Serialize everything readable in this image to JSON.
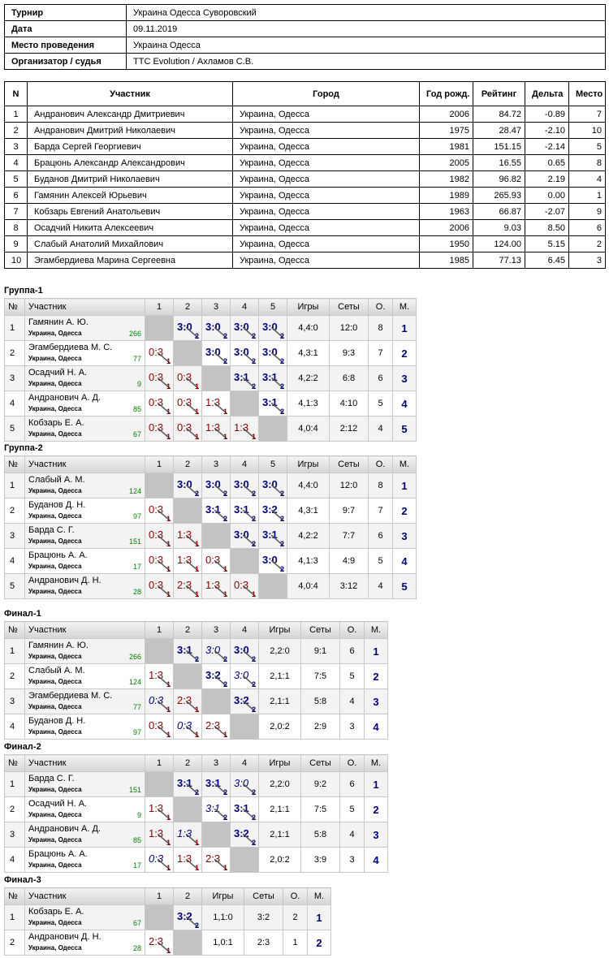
{
  "info": {
    "rows": [
      [
        "Турнир",
        "Украина Одесса Суворовский"
      ],
      [
        "Дата",
        "09.11.2019"
      ],
      [
        "Место проведения",
        "Украина Одесса"
      ],
      [
        "Организатор / судья",
        "TTC Evolution / Ахламов С.В."
      ]
    ]
  },
  "participants": {
    "header": [
      "N",
      "Участник",
      "Город",
      "Год рожд.",
      "Рейтинг",
      "Дельта",
      "Место"
    ],
    "rows": [
      [
        "1",
        "Андранович Александр Дмитриевич",
        "Украина, Одесса",
        "2006",
        "84.72",
        "-0.89",
        "7"
      ],
      [
        "2",
        "Андранович Дмитрий Николаевич",
        "Украина, Одесса",
        "1975",
        "28.47",
        "-2.10",
        "10"
      ],
      [
        "3",
        "Барда Сергей Георгиевич",
        "Украина, Одесса",
        "1981",
        "151.15",
        "-2.14",
        "5"
      ],
      [
        "4",
        "Брацюнь Александр Александрович",
        "Украина, Одесса",
        "2005",
        "16.55",
        "0.65",
        "8"
      ],
      [
        "5",
        "Буданов Дмитрий Николаевич",
        "Украина, Одесса",
        "1982",
        "96.82",
        "2.19",
        "4"
      ],
      [
        "6",
        "Гамянин Алексей Юрьевич",
        "Украина, Одесса",
        "1989",
        "265.93",
        "0.00",
        "1"
      ],
      [
        "7",
        "Кобзарь Евгений Анатольевич",
        "Украина, Одесса",
        "1963",
        "66.87",
        "-2.07",
        "9"
      ],
      [
        "8",
        "Осадчий Никита Алексеевич",
        "Украина, Одесса",
        "2006",
        "9.03",
        "8.50",
        "6"
      ],
      [
        "9",
        "Слабый Анатолий Михайлович",
        "Украина, Одесса",
        "1950",
        "124.00",
        "5.15",
        "2"
      ],
      [
        "10",
        "Эгамбердиева Марина Сергеевна",
        "Украина, Одесса",
        "1985",
        "77.13",
        "6.45",
        "3"
      ]
    ]
  },
  "groups": [
    {
      "title": "Группа-1",
      "header": [
        "№",
        "Участник",
        "1",
        "2",
        "3",
        "4",
        "5",
        "Игры",
        "Сеты",
        "О.",
        "М."
      ],
      "rows": [
        {
          "n": 1,
          "name": "Гамянин А. Ю.",
          "city": "Украина, Одесса",
          "rating": 266,
          "cells": [
            null,
            {
              "score": "3:0",
              "pts": 2
            },
            {
              "score": "3:0",
              "pts": 2
            },
            {
              "score": "3:0",
              "pts": 2
            },
            {
              "score": "3:0",
              "pts": 2
            }
          ],
          "games": "4,4:0",
          "sets": "12:0",
          "points": 8,
          "place": 1
        },
        {
          "n": 2,
          "name": "Эгамбердиева М. С.",
          "city": "Украина, Одесса",
          "rating": 77,
          "cells": [
            {
              "score": "0:3",
              "pts": 1
            },
            null,
            {
              "score": "3:0",
              "pts": 2
            },
            {
              "score": "3:0",
              "pts": 2
            },
            {
              "score": "3:0",
              "pts": 2
            }
          ],
          "games": "4,3:1",
          "sets": "9:3",
          "points": 7,
          "place": 2
        },
        {
          "n": 3,
          "name": "Осадчий Н. А.",
          "city": "Украина, Одесса",
          "rating": 9,
          "cells": [
            {
              "score": "0:3",
              "pts": 1
            },
            {
              "score": "0:3",
              "pts": 1
            },
            null,
            {
              "score": "3:1",
              "pts": 2
            },
            {
              "score": "3:1",
              "pts": 2
            }
          ],
          "games": "4,2:2",
          "sets": "6:8",
          "points": 6,
          "place": 3
        },
        {
          "n": 4,
          "name": "Андранович А. Д.",
          "city": "Украина, Одесса",
          "rating": 85,
          "cells": [
            {
              "score": "0:3",
              "pts": 1
            },
            {
              "score": "0:3",
              "pts": 1
            },
            {
              "score": "1:3",
              "pts": 1
            },
            null,
            {
              "score": "3:1",
              "pts": 2
            }
          ],
          "games": "4,1:3",
          "sets": "4:10",
          "points": 5,
          "place": 4
        },
        {
          "n": 5,
          "name": "Кобзарь Е. А.",
          "city": "Украина, Одесса",
          "rating": 67,
          "cells": [
            {
              "score": "0:3",
              "pts": 1
            },
            {
              "score": "0:3",
              "pts": 1
            },
            {
              "score": "1:3",
              "pts": 1
            },
            {
              "score": "1:3",
              "pts": 1
            },
            null
          ],
          "games": "4,0:4",
          "sets": "2:12",
          "points": 4,
          "place": 5
        }
      ]
    },
    {
      "title": "Группа-2",
      "header": [
        "№",
        "Участник",
        "1",
        "2",
        "3",
        "4",
        "5",
        "Игры",
        "Сеты",
        "О.",
        "М."
      ],
      "rows": [
        {
          "n": 1,
          "name": "Слабый А. М.",
          "city": "Украина, Одесса",
          "rating": 124,
          "cells": [
            null,
            {
              "score": "3:0",
              "pts": 2
            },
            {
              "score": "3:0",
              "pts": 2
            },
            {
              "score": "3:0",
              "pts": 2
            },
            {
              "score": "3:0",
              "pts": 2
            }
          ],
          "games": "4,4:0",
          "sets": "12:0",
          "points": 8,
          "place": 1
        },
        {
          "n": 2,
          "name": "Буданов Д. Н.",
          "city": "Украина, Одесса",
          "rating": 97,
          "cells": [
            {
              "score": "0:3",
              "pts": 1
            },
            null,
            {
              "score": "3:1",
              "pts": 2
            },
            {
              "score": "3:1",
              "pts": 2
            },
            {
              "score": "3:2",
              "pts": 2
            }
          ],
          "games": "4,3:1",
          "sets": "9:7",
          "points": 7,
          "place": 2
        },
        {
          "n": 3,
          "name": "Барда С. Г.",
          "city": "Украина, Одесса",
          "rating": 151,
          "cells": [
            {
              "score": "0:3",
              "pts": 1
            },
            {
              "score": "1:3",
              "pts": 1
            },
            null,
            {
              "score": "3:0",
              "pts": 2
            },
            {
              "score": "3:1",
              "pts": 2
            }
          ],
          "games": "4,2:2",
          "sets": "7:7",
          "points": 6,
          "place": 3
        },
        {
          "n": 4,
          "name": "Брацюнь А. А.",
          "city": "Украина, Одесса",
          "rating": 17,
          "cells": [
            {
              "score": "0:3",
              "pts": 1
            },
            {
              "score": "1:3",
              "pts": 1
            },
            {
              "score": "0:3",
              "pts": 1
            },
            null,
            {
              "score": "3:0",
              "pts": 2
            }
          ],
          "games": "4,1:3",
          "sets": "4:9",
          "points": 5,
          "place": 4
        },
        {
          "n": 5,
          "name": "Андранович Д. Н.",
          "city": "Украина, Одесса",
          "rating": 28,
          "cells": [
            {
              "score": "0:3",
              "pts": 1
            },
            {
              "score": "2:3",
              "pts": 1
            },
            {
              "score": "1:3",
              "pts": 1
            },
            {
              "score": "0:3",
              "pts": 1
            },
            null
          ],
          "games": "4,0:4",
          "sets": "3:12",
          "points": 4,
          "place": 5
        }
      ]
    },
    {
      "title": "Финал-1",
      "header": [
        "№",
        "Участник",
        "1",
        "2",
        "3",
        "4",
        "Игры",
        "Сеты",
        "О.",
        "М."
      ],
      "rows": [
        {
          "n": 1,
          "name": "Гамянин А. Ю.",
          "city": "Украина, Одесса",
          "rating": 266,
          "cells": [
            null,
            {
              "score": "3:1",
              "pts": 2
            },
            {
              "score": "3:0",
              "pts": 2,
              "italic": true
            },
            {
              "score": "3:0",
              "pts": 2
            }
          ],
          "games": "2,2:0",
          "sets": "9:1",
          "points": 6,
          "place": 1
        },
        {
          "n": 2,
          "name": "Слабый А. М.",
          "city": "Украина, Одесса",
          "rating": 124,
          "cells": [
            {
              "score": "1:3",
              "pts": 1
            },
            null,
            {
              "score": "3:2",
              "pts": 2
            },
            {
              "score": "3:0",
              "pts": 2,
              "italic": true
            }
          ],
          "games": "2,1:1",
          "sets": "7:5",
          "points": 5,
          "place": 2
        },
        {
          "n": 3,
          "name": "Эгамбердиева М. С.",
          "city": "Украина, Одесса",
          "rating": 77,
          "cells": [
            {
              "score": "0:3",
              "pts": 1,
              "italic": true
            },
            {
              "score": "2:3",
              "pts": 1
            },
            null,
            {
              "score": "3:2",
              "pts": 2
            }
          ],
          "games": "2,1:1",
          "sets": "5:8",
          "points": 4,
          "place": 3
        },
        {
          "n": 4,
          "name": "Буданов Д. Н.",
          "city": "Украина, Одесса",
          "rating": 97,
          "cells": [
            {
              "score": "0:3",
              "pts": 1
            },
            {
              "score": "0:3",
              "pts": 1,
              "italic": true
            },
            {
              "score": "2:3",
              "pts": 1
            },
            null
          ],
          "games": "2,0:2",
          "sets": "2:9",
          "points": 3,
          "place": 4
        }
      ]
    },
    {
      "title": "Финал-2",
      "header": [
        "№",
        "Участник",
        "1",
        "2",
        "3",
        "4",
        "Игры",
        "Сеты",
        "О.",
        "М."
      ],
      "rows": [
        {
          "n": 1,
          "name": "Барда С. Г.",
          "city": "Украина, Одесса",
          "rating": 151,
          "cells": [
            null,
            {
              "score": "3:1",
              "pts": 2
            },
            {
              "score": "3:1",
              "pts": 2
            },
            {
              "score": "3:0",
              "pts": 2,
              "italic": true
            }
          ],
          "games": "2,2:0",
          "sets": "9:2",
          "points": 6,
          "place": 1
        },
        {
          "n": 2,
          "name": "Осадчий Н. А.",
          "city": "Украина, Одесса",
          "rating": 9,
          "cells": [
            {
              "score": "1:3",
              "pts": 1
            },
            null,
            {
              "score": "3:1",
              "pts": 2,
              "italic": true
            },
            {
              "score": "3:1",
              "pts": 2
            }
          ],
          "games": "2,1:1",
          "sets": "7:5",
          "points": 5,
          "place": 2
        },
        {
          "n": 3,
          "name": "Андранович А. Д.",
          "city": "Украина, Одесса",
          "rating": 85,
          "cells": [
            {
              "score": "1:3",
              "pts": 1
            },
            {
              "score": "1:3",
              "pts": 1,
              "italic": true
            },
            null,
            {
              "score": "3:2",
              "pts": 2
            }
          ],
          "games": "2,1:1",
          "sets": "5:8",
          "points": 4,
          "place": 3
        },
        {
          "n": 4,
          "name": "Брацюнь А. А.",
          "city": "Украина, Одесса",
          "rating": 17,
          "cells": [
            {
              "score": "0:3",
              "pts": 1,
              "italic": true
            },
            {
              "score": "1:3",
              "pts": 1
            },
            {
              "score": "2:3",
              "pts": 1
            },
            null
          ],
          "games": "2,0:2",
          "sets": "3:9",
          "points": 3,
          "place": 4
        }
      ]
    },
    {
      "title": "Финал-3",
      "header": [
        "№",
        "Участник",
        "1",
        "2",
        "Игры",
        "Сеты",
        "О.",
        "М."
      ],
      "rows": [
        {
          "n": 1,
          "name": "Кобзарь Е. А.",
          "city": "Украина, Одесса",
          "rating": 67,
          "cells": [
            null,
            {
              "score": "3:2",
              "pts": 2
            }
          ],
          "games": "1,1:0",
          "sets": "3:2",
          "points": 2,
          "place": 1
        },
        {
          "n": 2,
          "name": "Андранович Д. Н.",
          "city": "Украина, Одесса",
          "rating": 28,
          "cells": [
            {
              "score": "2:3",
              "pts": 1
            },
            null
          ],
          "games": "1,0:1",
          "sets": "2:3",
          "points": 1,
          "place": 2
        }
      ]
    }
  ]
}
